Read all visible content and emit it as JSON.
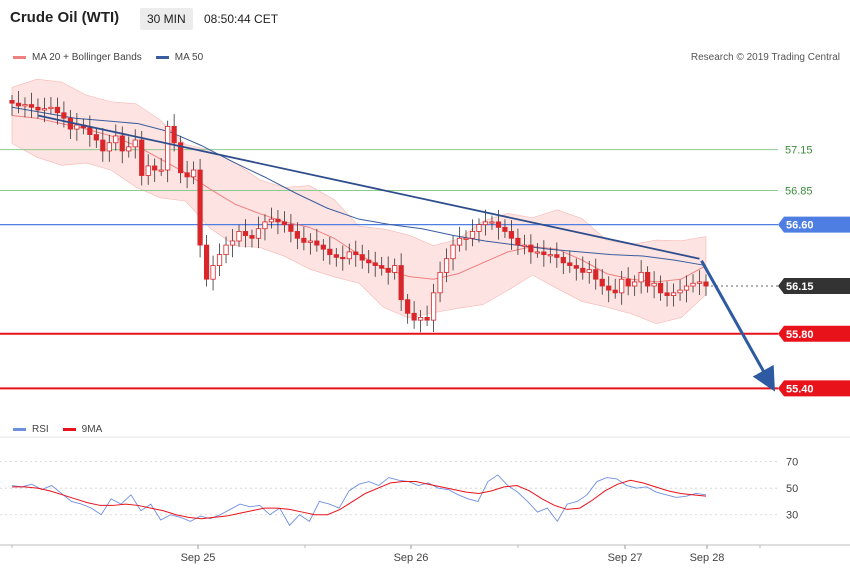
{
  "header": {
    "title": "Crude Oil (WTI)",
    "timeframe": "30 MIN",
    "time": "08:50:44 CET"
  },
  "main_legend": {
    "ma20": "MA 20 + Bollinger Bands",
    "ma50": "MA 50"
  },
  "copyright": "Research © 2019 Trading Central",
  "rsi_legend": {
    "rsi": "RSI",
    "ma9": "9MA"
  },
  "colors": {
    "bull": "#d9262b",
    "bear": "#d9262b",
    "trendline": "#2e4d8c",
    "ma50": "#3a5d9f",
    "ma20": "#f08080",
    "band_fill": "#fde3e1",
    "green_level": "#8fc98f",
    "blue_level": "#4f7ee2",
    "red_level": "#e8121b",
    "current_tag": "#333333",
    "rsi_line": "#6f8fe0",
    "ma9_line": "#e8121b"
  },
  "chart_data": [
    {
      "type": "candlestick",
      "title": "Crude Oil (WTI)",
      "ylim": [
        55.3,
        57.55
      ],
      "x_labels": [
        "Sep 25",
        "Sep 26",
        "Sep 27",
        "Sep 28"
      ],
      "levels": [
        {
          "value": 57.15,
          "label": "57.15",
          "style": "resistance"
        },
        {
          "value": 56.85,
          "label": "56.85",
          "style": "resistance"
        },
        {
          "value": 56.6,
          "label": "56.60",
          "style": "pivot"
        },
        {
          "value": 56.15,
          "label": "56.15",
          "style": "current"
        },
        {
          "value": 55.8,
          "label": "55.80",
          "style": "support"
        },
        {
          "value": 55.4,
          "label": "55.40",
          "style": "support"
        }
      ],
      "closes": [
        57.49,
        57.47,
        57.48,
        57.46,
        57.44,
        57.45,
        57.46,
        57.42,
        57.38,
        57.3,
        57.33,
        57.31,
        57.26,
        57.22,
        57.14,
        57.2,
        57.25,
        57.14,
        57.17,
        57.22,
        56.96,
        57.03,
        57.0,
        57.0,
        57.32,
        57.2,
        56.98,
        56.95,
        57.0,
        56.45,
        56.2,
        56.3,
        56.38,
        56.45,
        56.48,
        56.55,
        56.52,
        56.5,
        56.57,
        56.62,
        56.64,
        56.62,
        56.6,
        56.55,
        56.5,
        56.47,
        56.48,
        56.45,
        56.42,
        56.38,
        56.36,
        56.35,
        56.4,
        56.38,
        56.34,
        56.32,
        56.3,
        56.28,
        56.25,
        56.3,
        56.05,
        55.95,
        55.9,
        55.92,
        55.9,
        56.1,
        56.25,
        56.35,
        56.45,
        56.5,
        56.5,
        56.55,
        56.6,
        56.62,
        56.62,
        56.58,
        56.55,
        56.5,
        56.45,
        56.45,
        56.4,
        56.4,
        56.38,
        56.38,
        56.36,
        56.32,
        56.3,
        56.28,
        56.25,
        56.27,
        56.2,
        56.15,
        56.12,
        56.1,
        56.2,
        56.15,
        56.18,
        56.25,
        56.15,
        56.17,
        56.1,
        56.08,
        56.1,
        56.12,
        56.15,
        56.17,
        56.18,
        56.15
      ],
      "trendline": [
        [
          4,
          57.4
        ],
        [
          106,
          56.35
        ]
      ],
      "series": [
        {
          "name": "MA 20 + Bollinger Bands",
          "values": [
            57.4,
            57.38,
            57.34,
            57.3,
            57.25,
            57.18,
            57.08,
            56.98,
            56.86,
            56.75,
            56.68,
            56.62,
            56.58,
            56.5,
            56.38,
            56.28,
            56.22,
            56.2,
            56.24,
            56.32,
            56.4,
            56.44,
            56.42,
            56.34,
            56.24,
            56.2,
            56.18,
            56.2,
            56.3
          ]
        },
        {
          "name": "MA 50",
          "values": [
            57.46,
            57.42,
            57.38,
            57.36,
            57.34,
            57.28,
            57.18,
            57.06,
            56.95,
            56.83,
            56.72,
            56.64,
            56.6,
            56.57,
            56.52,
            56.48,
            56.45,
            56.42,
            56.4,
            56.38,
            56.37,
            56.34,
            56.3
          ]
        }
      ]
    },
    {
      "type": "line",
      "title": "",
      "ylim": [
        20,
        75
      ],
      "y_ticks": [
        30,
        50,
        70
      ],
      "x_labels": [
        "Sep 25",
        "Sep 26",
        "Sep 27",
        "Sep 28"
      ],
      "series": [
        {
          "name": "RSI",
          "values": [
            52,
            51,
            53,
            49,
            52,
            46,
            40,
            38,
            35,
            30,
            42,
            38,
            45,
            33,
            38,
            26,
            30,
            28,
            25,
            29,
            27,
            30,
            34,
            38,
            36,
            37,
            30,
            35,
            22,
            30,
            25,
            40,
            38,
            35,
            48,
            53,
            55,
            52,
            58,
            56,
            55,
            52,
            54,
            50,
            49,
            45,
            42,
            40,
            55,
            60,
            52,
            47,
            40,
            32,
            35,
            25,
            38,
            40,
            45,
            55,
            58,
            57,
            52,
            50,
            51,
            47,
            45,
            43,
            44,
            46,
            45
          ]
        },
        {
          "name": "9MA",
          "values": [
            51,
            51,
            50,
            48,
            45,
            42,
            39,
            37,
            37,
            38,
            37,
            35,
            33,
            30,
            28,
            27,
            28,
            29,
            31,
            33,
            35,
            35,
            34,
            32,
            30,
            30,
            34,
            40,
            46,
            50,
            54,
            55,
            55,
            53,
            51,
            49,
            47,
            46,
            48,
            51,
            52,
            48,
            42,
            37,
            34,
            35,
            41,
            48,
            53,
            56,
            54,
            51,
            48,
            46,
            45,
            44
          ]
        }
      ]
    }
  ]
}
